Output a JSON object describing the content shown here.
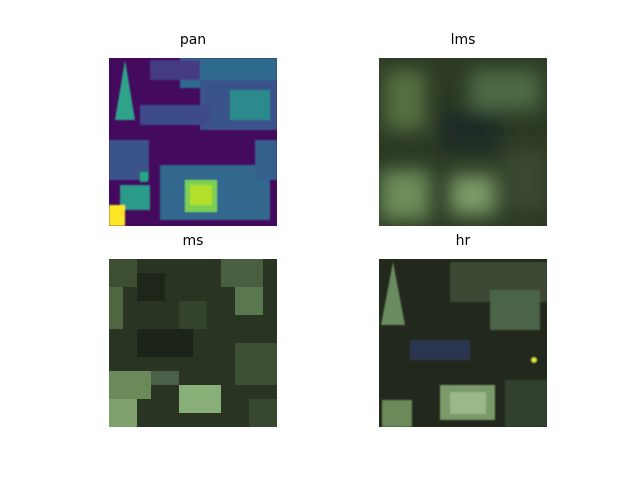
{
  "panels": [
    {
      "title": "pan"
    },
    {
      "title": "lms"
    },
    {
      "title": "ms"
    },
    {
      "title": "hr"
    }
  ]
}
